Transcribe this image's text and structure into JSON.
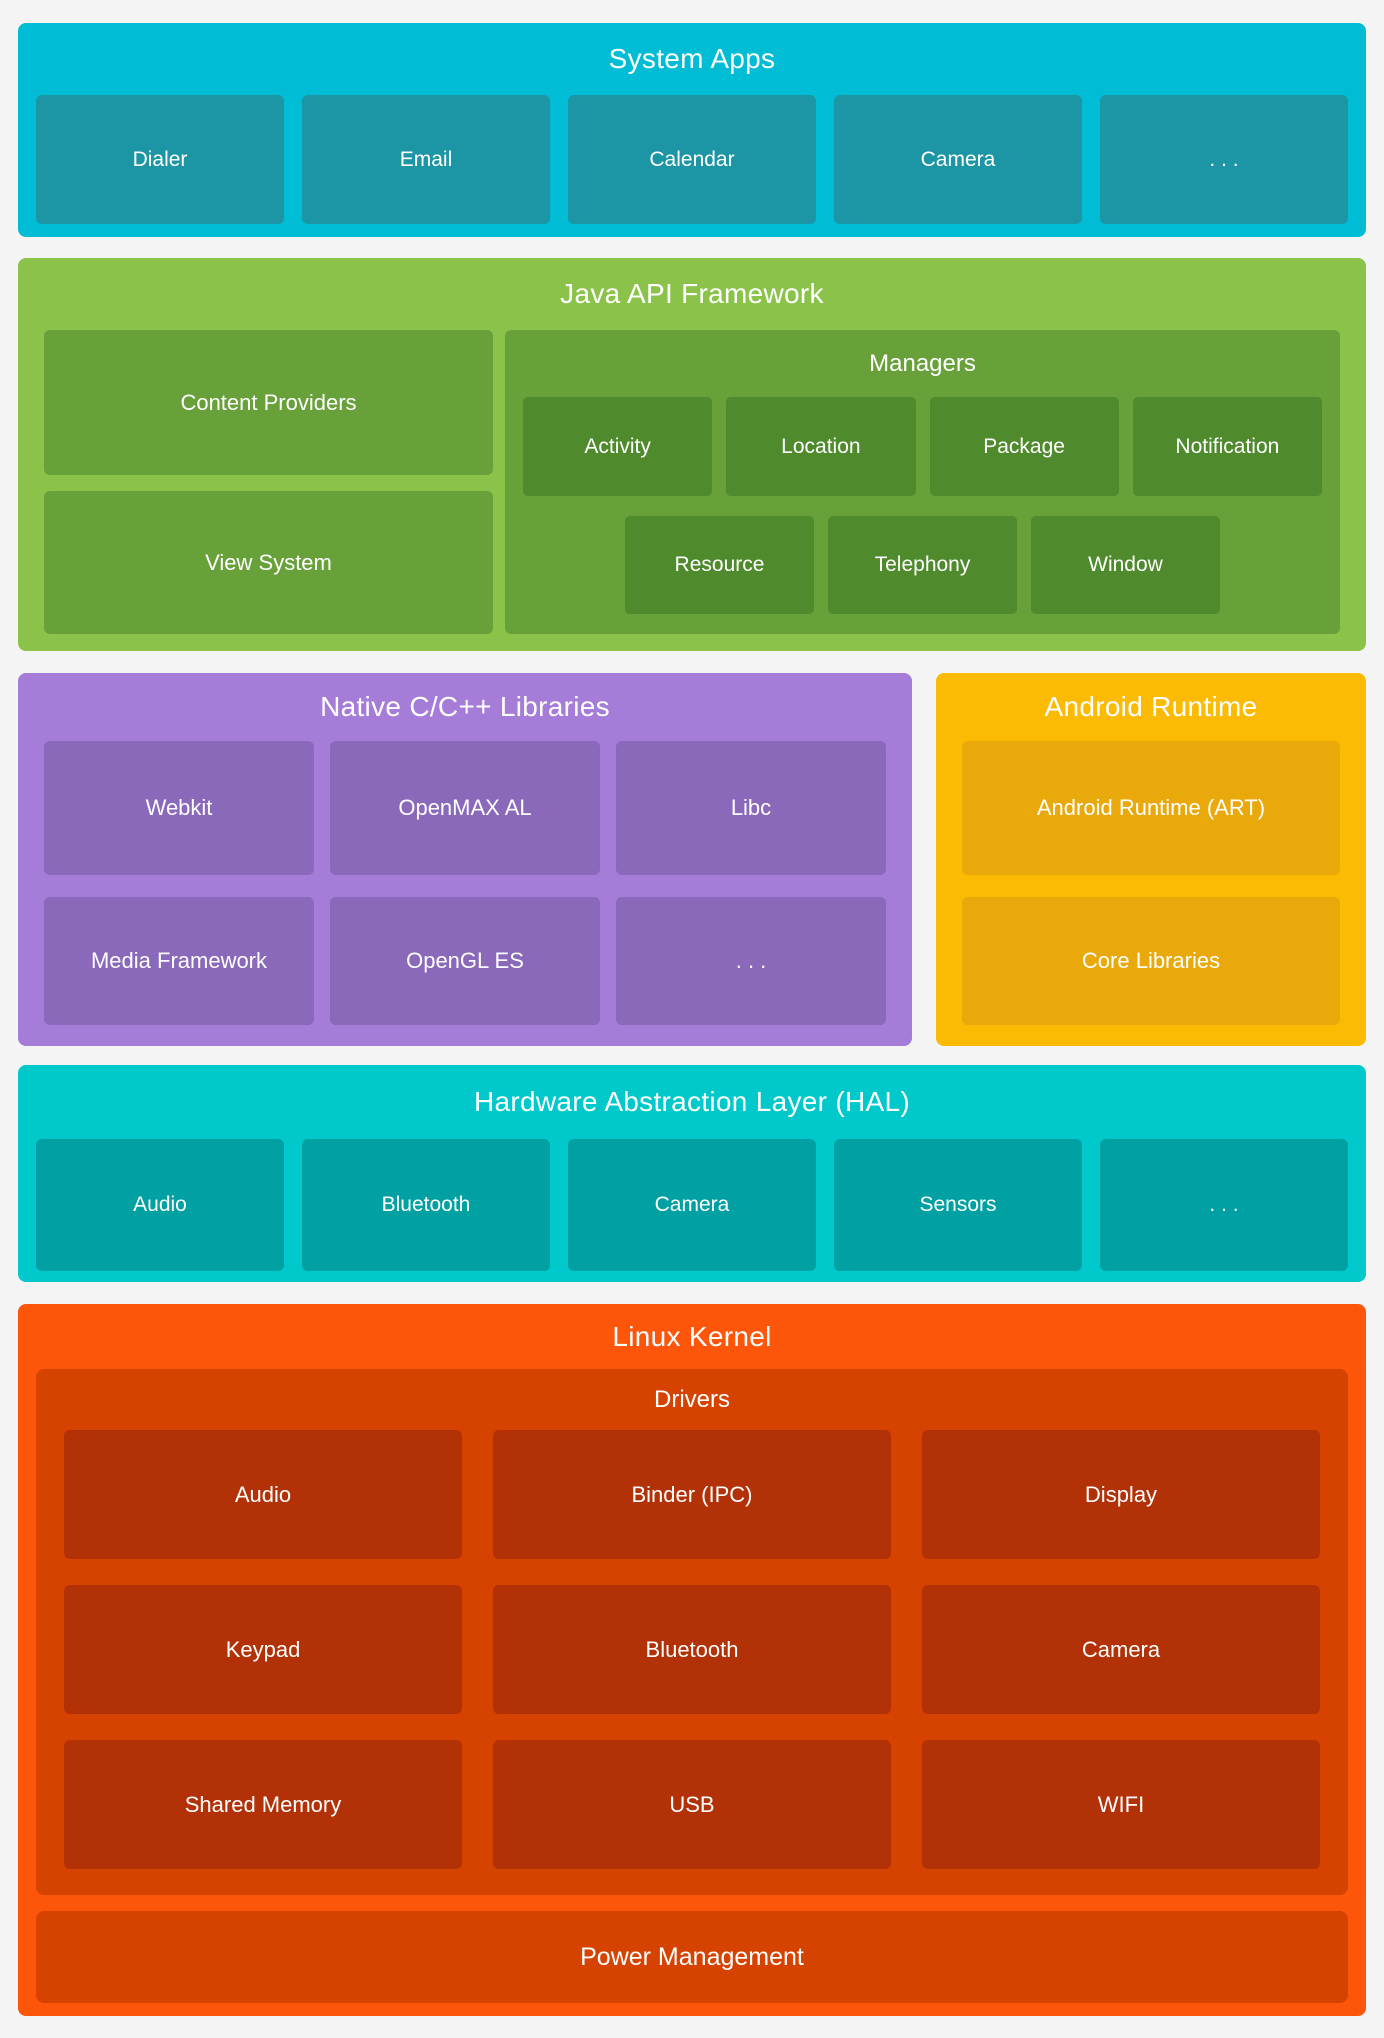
{
  "colors": {
    "page_bg": "#F4F4F4",
    "text": "#FFFFFF",
    "system_apps_bg": "#00BCD4",
    "system_apps_box": "#1C95A5",
    "java_bg": "#8BC34A",
    "java_box": "#68A03A",
    "manager_box": "#4F8A2D",
    "native_bg": "#A57CD8",
    "native_box": "#8A68BA",
    "runtime_bg": "#FBBB04",
    "runtime_box": "#E9A90B",
    "hal_bg": "#00C8CB",
    "hal_box": "#00A0A3",
    "kernel_bg": "#FD560A",
    "drivers_bg": "#D64200",
    "driver_box": "#B23107"
  },
  "system_apps": {
    "title": "System Apps",
    "items": [
      "Dialer",
      "Email",
      "Calendar",
      "Camera",
      ". . ."
    ]
  },
  "java_api": {
    "title": "Java API Framework",
    "left_items": [
      "Content Providers",
      "View System"
    ],
    "managers": {
      "title": "Managers",
      "row1": [
        "Activity",
        "Location",
        "Package",
        "Notification"
      ],
      "row2": [
        "Resource",
        "Telephony",
        "Window"
      ]
    }
  },
  "native_libs": {
    "title": "Native C/C++ Libraries",
    "row1": [
      "Webkit",
      "OpenMAX AL",
      "Libc"
    ],
    "row2": [
      "Media Framework",
      "OpenGL ES",
      ". . ."
    ]
  },
  "android_runtime": {
    "title": "Android Runtime",
    "items": [
      "Android Runtime (ART)",
      "Core Libraries"
    ]
  },
  "hal": {
    "title": "Hardware Abstraction Layer (HAL)",
    "items": [
      "Audio",
      "Bluetooth",
      "Camera",
      "Sensors",
      ". . ."
    ]
  },
  "linux_kernel": {
    "title": "Linux Kernel",
    "drivers": {
      "title": "Drivers",
      "row1": [
        "Audio",
        "Binder (IPC)",
        "Display"
      ],
      "row2": [
        "Keypad",
        "Bluetooth",
        "Camera"
      ],
      "row3": [
        "Shared Memory",
        "USB",
        "WIFI"
      ]
    },
    "power_label": "Power Management"
  }
}
